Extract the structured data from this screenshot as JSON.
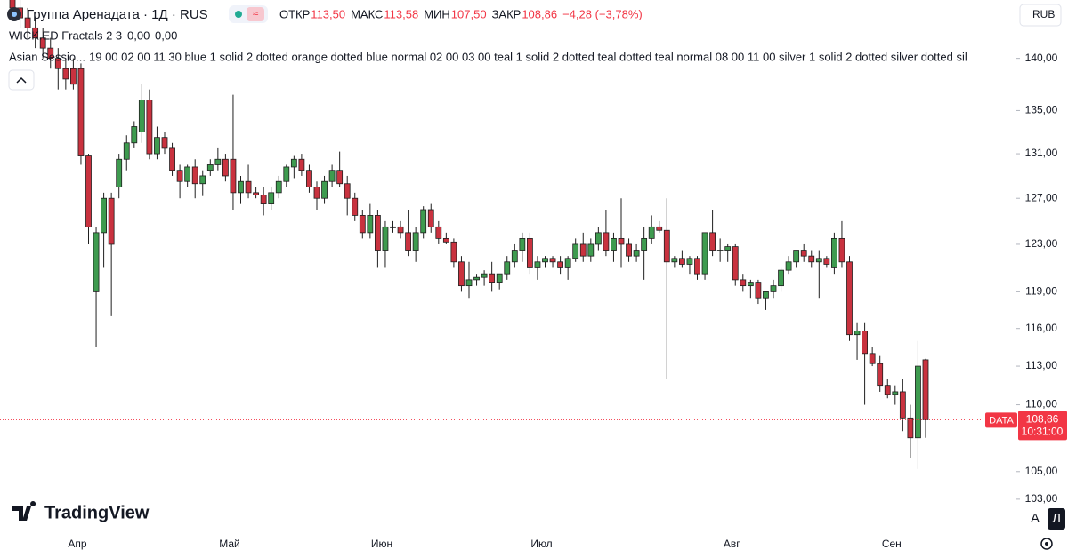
{
  "header": {
    "title": "Группа Аренадата · 1Д · RUS",
    "ohlc": [
      {
        "label": "ОТКР",
        "value": "113,50"
      },
      {
        "label": "МАКС",
        "value": "113,58"
      },
      {
        "label": "МИН",
        "value": "107,50"
      },
      {
        "label": "ЗАКР",
        "value": "108,86"
      }
    ],
    "change": "−4,28 (−3,78%)",
    "indicators": [
      {
        "name": "WICK.ED Fractals 2 3",
        "values": [
          "0,00",
          "0,00"
        ]
      },
      {
        "name": "Asian Sessio...",
        "params": "19 00 02 00 11 30 blue 1 solid 2 dotted orange dotted blue normal 02 00 03 00 teal 1 solid 2 dotted teal dotted teal normal 08 00 11 00 silver 1 solid 2 dotted silver dotted sil"
      }
    ],
    "currency": "RUB",
    "brand": "TradingView",
    "buttons": [
      "A",
      "Л"
    ]
  },
  "chart_data": {
    "type": "candlestick",
    "log_scale": true,
    "grid": false,
    "up_color": "#3e9b4f",
    "down_color": "#c9323f",
    "wick_color": "#1f1f1f",
    "categories": [
      null,
      null,
      null,
      null,
      null,
      null,
      null,
      null,
      null,
      "Апр",
      null,
      null,
      null,
      null,
      null,
      null,
      null,
      null,
      null,
      null,
      null,
      null,
      null,
      null,
      null,
      null,
      null,
      null,
      null,
      "Май",
      null,
      null,
      null,
      null,
      null,
      null,
      null,
      null,
      null,
      null,
      null,
      null,
      null,
      null,
      null,
      null,
      null,
      null,
      null,
      "Июн",
      null,
      null,
      null,
      null,
      null,
      null,
      null,
      null,
      null,
      null,
      null,
      null,
      null,
      null,
      null,
      null,
      null,
      null,
      null,
      null,
      "Июл",
      null,
      null,
      null,
      null,
      null,
      null,
      null,
      null,
      null,
      null,
      null,
      null,
      null,
      null,
      null,
      null,
      null,
      null,
      null,
      null,
      null,
      null,
      null,
      null,
      "Авг",
      null,
      null,
      null,
      null,
      null,
      null,
      null,
      null,
      null,
      null,
      null,
      null,
      null,
      null,
      null,
      null,
      null,
      null,
      null,
      null,
      "Сен",
      null,
      null,
      null,
      null
    ],
    "open": [
      146,
      145,
      144,
      143,
      142,
      141,
      140,
      139,
      139,
      139,
      130.8,
      119,
      124,
      127,
      128,
      130.5,
      132,
      133,
      136,
      131,
      132.5,
      131.5,
      129.5,
      128.5,
      129.8,
      128.3,
      129.5,
      130,
      130.5,
      130.5,
      127.5,
      128.5,
      127.5,
      127.3,
      126.5,
      127.5,
      128.5,
      129.8,
      130.5,
      129.5,
      128,
      127,
      128.5,
      129.5,
      128.3,
      127,
      125.5,
      124,
      125.5,
      122.5,
      124.5,
      124.5,
      124,
      122.5,
      124,
      126,
      124.5,
      123.5,
      123.2,
      121.5,
      119.5,
      120,
      120.2,
      120.5,
      119.8,
      120.5,
      121.5,
      122.5,
      123.5,
      121,
      121.5,
      121.8,
      121.5,
      121,
      121.8,
      123,
      122,
      123,
      124,
      122.5,
      123.5,
      123,
      122,
      122.5,
      123.5,
      124.5,
      124.2,
      121.5,
      121.8,
      121.3,
      121.8,
      120.5,
      124,
      122.5,
      122.5,
      122.8,
      120,
      119.5,
      119.8,
      118.5,
      119,
      119.5,
      120.8,
      121.5,
      122.5,
      122,
      121.5,
      121.8,
      121,
      123.5,
      121.5,
      115.5,
      115.8,
      114,
      113.2,
      111.5,
      110.8,
      111,
      109,
      107.5,
      113.5
    ],
    "high": [
      147,
      146,
      145,
      144,
      143,
      142,
      141,
      140,
      140,
      139.5,
      131,
      124.5,
      127.5,
      127.5,
      131,
      132.7,
      134,
      137.5,
      137,
      133.5,
      133,
      132,
      130,
      130,
      130.5,
      129.5,
      130.5,
      131.5,
      131,
      136.5,
      129,
      130,
      128,
      128,
      128,
      129,
      130,
      130.8,
      131,
      130,
      128.5,
      129,
      130,
      131.2,
      129,
      127.5,
      126,
      126.5,
      126,
      125,
      125,
      125,
      126,
      124.5,
      126.3,
      126.5,
      125,
      124,
      123.5,
      122,
      121.5,
      120.5,
      120.8,
      121.5,
      120.5,
      122,
      123,
      124,
      124,
      122,
      122,
      122,
      122,
      122,
      123.5,
      124,
      123.5,
      124.5,
      126,
      124,
      127,
      123.5,
      123,
      124.5,
      125.5,
      125,
      127,
      122,
      122.5,
      122,
      122,
      124,
      126,
      123.5,
      123,
      123,
      120.5,
      120,
      120,
      119,
      120,
      121,
      122,
      122.5,
      123,
      122.5,
      122.5,
      122,
      124,
      125,
      122,
      116.5,
      116.5,
      114.5,
      113.8,
      112,
      111.5,
      112,
      110,
      115,
      113.58
    ],
    "low": [
      144,
      143,
      142,
      141,
      140,
      139,
      137,
      137,
      137,
      130,
      123,
      114.5,
      121,
      117,
      127,
      129.5,
      131.5,
      132,
      130.5,
      130.5,
      131,
      129,
      127,
      128,
      127,
      127.2,
      129,
      129.5,
      128.5,
      126,
      126.5,
      127,
      127,
      125.5,
      126,
      127,
      128,
      128.8,
      129,
      127.5,
      126,
      126.5,
      128,
      128,
      125.5,
      125,
      123.5,
      123.5,
      121,
      121,
      124,
      123.5,
      122,
      121.5,
      123.5,
      124,
      123,
      123,
      121,
      119,
      118.5,
      119.5,
      119.5,
      119,
      119.2,
      120,
      121,
      121.5,
      120.5,
      120,
      121,
      121,
      120.5,
      120,
      121.5,
      121.5,
      121.5,
      122.5,
      122,
      121.5,
      121,
      121.5,
      121.5,
      120,
      123,
      124,
      112,
      121,
      121,
      120.5,
      120,
      120,
      122,
      121.5,
      121.5,
      119.5,
      119,
      118.5,
      118,
      117.5,
      118.5,
      119,
      120.5,
      121,
      121.5,
      121,
      118.5,
      121,
      120.5,
      121,
      115,
      113.5,
      110,
      113,
      111,
      110.5,
      110,
      108,
      106,
      105.2,
      107.5
    ],
    "close": [
      145,
      144,
      143,
      142,
      141,
      140,
      139,
      138,
      137.5,
      130.8,
      124.5,
      124,
      127,
      123,
      130.5,
      132,
      133.5,
      136,
      131,
      132.5,
      131.5,
      129.5,
      128.5,
      129.8,
      128.3,
      129,
      130,
      130.5,
      129,
      127.5,
      128.5,
      127.5,
      127.3,
      126.5,
      127.5,
      128.5,
      129.8,
      130.5,
      129.5,
      128,
      127,
      128.5,
      129.5,
      128.3,
      127,
      125.5,
      124,
      125.5,
      122.5,
      124.5,
      124.5,
      124,
      122.5,
      124,
      126,
      124.5,
      123.5,
      123.2,
      121.5,
      119.5,
      120,
      120.2,
      120.5,
      119.8,
      120.5,
      121.5,
      122.5,
      123.5,
      121,
      121.5,
      121.8,
      121.5,
      121,
      121.8,
      123,
      122,
      123,
      124,
      122.5,
      123.5,
      123,
      122,
      122.5,
      123.5,
      124.5,
      124.2,
      121.5,
      121.8,
      121.3,
      121.8,
      120.5,
      124,
      122.5,
      122.5,
      122.8,
      120,
      119.5,
      119.8,
      118.5,
      119,
      119.5,
      120.8,
      121.5,
      122.5,
      122,
      121.5,
      121.8,
      121.3,
      123.5,
      121.5,
      115.5,
      115.8,
      114,
      113.2,
      111.5,
      110.8,
      111,
      109,
      107.5,
      113,
      108.86
    ],
    "ylim": [
      100.6,
      145.8
    ],
    "yticks": [
      {
        "value": 140,
        "label": "140,00"
      },
      {
        "value": 135,
        "label": "135,00"
      },
      {
        "value": 131,
        "label": "131,00"
      },
      {
        "value": 127,
        "label": "127,00"
      },
      {
        "value": 123,
        "label": "123,00"
      },
      {
        "value": 119,
        "label": "119,00"
      },
      {
        "value": 116,
        "label": "116,00"
      },
      {
        "value": 113,
        "label": "113,00"
      },
      {
        "value": 110,
        "label": "110,00"
      },
      {
        "value": 105,
        "label": "105,00"
      },
      {
        "value": 103,
        "label": "103,00"
      }
    ],
    "last_price": {
      "value": 108.86,
      "label": "108,86",
      "time": "10:31:00",
      "tag": "DATA",
      "color": "#f23645"
    }
  }
}
